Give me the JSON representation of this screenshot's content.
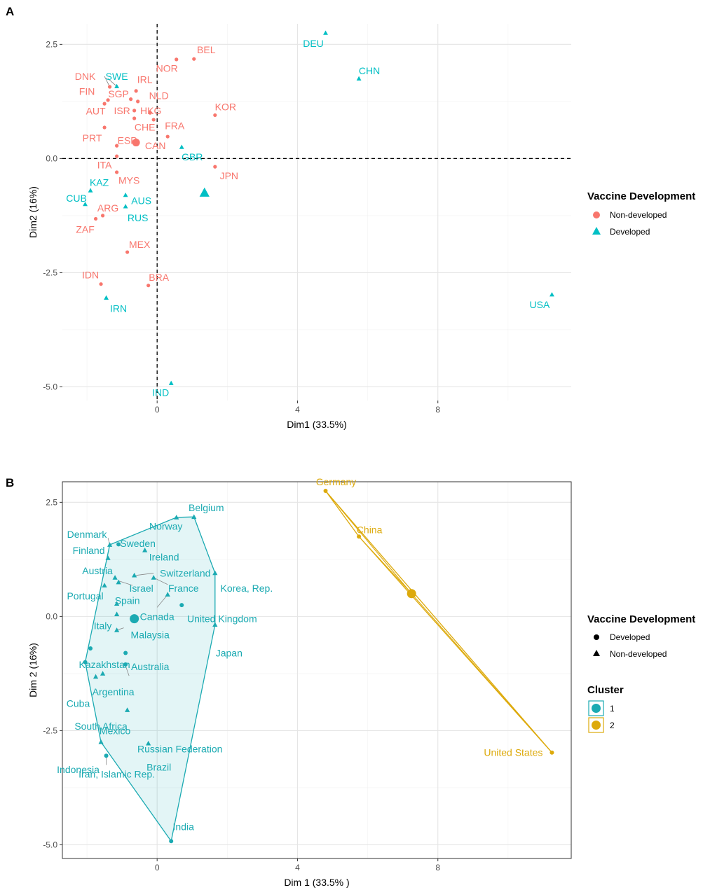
{
  "chart_data": [
    {
      "panel": "A",
      "type": "scatter",
      "xlabel": "Dim1 (33.5%)",
      "ylabel": "Dim2 (16%)",
      "xlim": [
        -2.7,
        11.8
      ],
      "ylim": [
        -5.3,
        2.95
      ],
      "x_ticks": [
        0,
        4,
        8
      ],
      "y_ticks": [
        2.5,
        0.0,
        -2.5,
        -5.0
      ],
      "y_tick_labels": [
        "2.5",
        "0.0",
        "-2.5",
        "-5.0"
      ],
      "reference_lines": {
        "x": 0,
        "y": 0
      },
      "legend": {
        "title": "Vaccine Development",
        "entries": [
          {
            "label": "Non-developed",
            "shape": "circle",
            "color": "#F8766D"
          },
          {
            "label": "Developed",
            "shape": "triangle",
            "color": "#00BFC4"
          }
        ]
      },
      "points": [
        {
          "label": "BEL",
          "x": 1.05,
          "y": 2.18,
          "group": "Non-developed",
          "lx": 1.4,
          "ly": 2.38
        },
        {
          "label": "NOR",
          "x": 0.55,
          "y": 2.17,
          "group": "Non-developed",
          "lx": 0.28,
          "ly": 1.98
        },
        {
          "label": "DNK",
          "x": -1.35,
          "y": 1.57,
          "group": "Non-developed",
          "lx": -2.05,
          "ly": 1.8
        },
        {
          "label": "IRL",
          "x": -0.6,
          "y": 1.48,
          "group": "Non-developed",
          "lx": -0.35,
          "ly": 1.73
        },
        {
          "label": "FIN",
          "x": -1.4,
          "y": 1.28,
          "group": "Non-developed",
          "lx": -2.0,
          "ly": 1.47
        },
        {
          "label": "SGP",
          "x": -0.75,
          "y": 1.3,
          "group": "Non-developed",
          "lx": -1.1,
          "ly": 1.42
        },
        {
          "label": "NLD",
          "x": -0.55,
          "y": 1.25,
          "group": "Non-developed",
          "lx": 0.05,
          "ly": 1.38
        },
        {
          "label": "AUT",
          "x": -1.5,
          "y": 1.2,
          "group": "Non-developed",
          "lx": -1.75,
          "ly": 1.04
        },
        {
          "label": "ISR",
          "x": -0.65,
          "y": 1.05,
          "group": "Non-developed",
          "lx": -1.0,
          "ly": 1.05
        },
        {
          "label": "HKG",
          "x": -0.2,
          "y": 1.0,
          "group": "Non-developed",
          "lx": -0.18,
          "ly": 1.05
        },
        {
          "label": "KOR",
          "x": 1.65,
          "y": 0.95,
          "group": "Non-developed",
          "lx": 1.95,
          "ly": 1.13
        },
        {
          "label": "CHE",
          "x": -0.65,
          "y": 0.88,
          "group": "Non-developed",
          "lx": -0.35,
          "ly": 0.69
        },
        {
          "label": "FRA",
          "x": -0.1,
          "y": 0.85,
          "group": "Non-developed",
          "lx": 0.5,
          "ly": 0.72
        },
        {
          "label": "PRT",
          "x": -1.5,
          "y": 0.68,
          "group": "Non-developed",
          "lx": -1.85,
          "ly": 0.45
        },
        {
          "label": "ESP",
          "x": -1.15,
          "y": 0.28,
          "group": "Non-developed",
          "lx": -0.85,
          "ly": 0.4
        },
        {
          "label": "CAN",
          "x": 0.3,
          "y": 0.48,
          "group": "Non-developed",
          "lx": -0.05,
          "ly": 0.28
        },
        {
          "label": "ITA",
          "x": -1.15,
          "y": 0.05,
          "group": "Non-developed",
          "lx": -1.5,
          "ly": -0.14
        },
        {
          "label": "JPN",
          "x": 1.65,
          "y": -0.18,
          "group": "Non-developed",
          "lx": 2.05,
          "ly": -0.38
        },
        {
          "label": "MYS",
          "x": -1.15,
          "y": -0.3,
          "group": "Non-developed",
          "lx": -0.8,
          "ly": -0.48
        },
        {
          "label": "ARG",
          "x": -1.55,
          "y": -1.25,
          "group": "Non-developed",
          "lx": -1.4,
          "ly": -1.08
        },
        {
          "label": "ZAF",
          "x": -1.75,
          "y": -1.32,
          "group": "Non-developed",
          "lx": -2.05,
          "ly": -1.55
        },
        {
          "label": "MEX",
          "x": -0.85,
          "y": -2.05,
          "group": "Non-developed",
          "lx": -0.5,
          "ly": -1.88
        },
        {
          "label": "IDN",
          "x": -1.6,
          "y": -2.75,
          "group": "Non-developed",
          "lx": -1.9,
          "ly": -2.55
        },
        {
          "label": "BRA",
          "x": -0.25,
          "y": -2.78,
          "group": "Non-developed",
          "lx": 0.05,
          "ly": -2.6
        },
        {
          "label": "DEU",
          "x": 4.8,
          "y": 2.75,
          "group": "Developed",
          "lx": 4.45,
          "ly": 2.52
        },
        {
          "label": "CHN",
          "x": 5.75,
          "y": 1.75,
          "group": "Developed",
          "lx": 6.05,
          "ly": 1.92
        },
        {
          "label": "SWE",
          "x": -1.15,
          "y": 1.58,
          "group": "Developed",
          "lx": -1.15,
          "ly": 1.8
        },
        {
          "label": "GBR",
          "x": 0.7,
          "y": 0.25,
          "group": "Developed",
          "lx": 1.0,
          "ly": 0.04
        },
        {
          "label": "KAZ",
          "x": -1.9,
          "y": -0.7,
          "group": "Developed",
          "lx": -1.65,
          "ly": -0.52
        },
        {
          "label": "CUB",
          "x": -2.05,
          "y": -1.0,
          "group": "Developed",
          "lx": -2.3,
          "ly": -0.87
        },
        {
          "label": "AUS",
          "x": -0.9,
          "y": -0.8,
          "group": "Developed",
          "lx": -0.45,
          "ly": -0.92
        },
        {
          "label": "RUS",
          "x": -0.9,
          "y": -1.05,
          "group": "Developed",
          "lx": -0.55,
          "ly": -1.3
        },
        {
          "label": "IRN",
          "x": -1.45,
          "y": -3.05,
          "group": "Developed",
          "lx": -1.1,
          "ly": -3.28
        },
        {
          "label": "USA",
          "x": 11.25,
          "y": -2.98,
          "group": "Developed",
          "lx": 10.9,
          "ly": -3.2
        },
        {
          "label": "IND",
          "x": 0.4,
          "y": -4.92,
          "group": "Developed",
          "lx": 0.1,
          "ly": -5.12
        }
      ],
      "centroids": [
        {
          "group": "Non-developed",
          "x": -0.6,
          "y": 0.35
        },
        {
          "group": "Developed",
          "x": 1.35,
          "y": -0.75
        }
      ],
      "leaders": [
        {
          "label": "DNK",
          "fx": -1.5,
          "fy": 1.8,
          "tx": -1.35,
          "ty": 1.57
        },
        {
          "label": "SWE",
          "fx": -1.4,
          "fy": 1.75,
          "tx": -1.15,
          "ty": 1.58
        }
      ]
    },
    {
      "panel": "B",
      "type": "scatter",
      "xlabel": "Dim 1 (33.5% )",
      "ylabel": "Dim 2 (16%)",
      "xlim": [
        -2.7,
        11.8
      ],
      "ylim": [
        -5.3,
        2.95
      ],
      "x_ticks": [
        0,
        4,
        8
      ],
      "y_ticks": [
        2.5,
        0.0,
        -2.5,
        -5.0
      ],
      "y_tick_labels": [
        "2.5",
        "0.0",
        "-2.5",
        "-5.0"
      ],
      "legend": {
        "title": "Vaccine Development",
        "entries": [
          {
            "label": "Developed",
            "shape": "circle"
          },
          {
            "label": "Non-developed",
            "shape": "triangle"
          }
        ],
        "cluster_title": "Cluster",
        "clusters": [
          {
            "label": "1",
            "color": "#1BAAB2"
          },
          {
            "label": "2",
            "color": "#DDAA0C"
          }
        ]
      },
      "points": [
        {
          "label": "Belgium",
          "x": 1.05,
          "y": 2.18,
          "shape": "triangle",
          "cluster": "1",
          "lx": 1.4,
          "ly": 2.38
        },
        {
          "label": "Norway",
          "x": 0.55,
          "y": 2.17,
          "shape": "triangle",
          "cluster": "1",
          "lx": 0.25,
          "ly": 1.98
        },
        {
          "label": "Denmark",
          "x": -1.35,
          "y": 1.57,
          "shape": "triangle",
          "cluster": "1",
          "lx": -2.0,
          "ly": 1.8
        },
        {
          "label": "Sweden",
          "x": -1.1,
          "y": 1.58,
          "shape": "circle",
          "cluster": "1",
          "lx": -0.55,
          "ly": 1.6
        },
        {
          "label": "Finland",
          "x": -1.4,
          "y": 1.28,
          "shape": "triangle",
          "cluster": "1",
          "lx": -1.95,
          "ly": 1.45
        },
        {
          "label": "Ireland",
          "x": -0.35,
          "y": 1.45,
          "shape": "triangle",
          "cluster": "1",
          "lx": 0.2,
          "ly": 1.3
        },
        {
          "label": "Austria",
          "x": -1.2,
          "y": 0.85,
          "shape": "triangle",
          "cluster": "1",
          "lx": -1.7,
          "ly": 1.0
        },
        {
          "label": "Switzerland",
          "x": -0.65,
          "y": 0.9,
          "shape": "triangle",
          "cluster": "1",
          "lx": 0.8,
          "ly": 0.95
        },
        {
          "label": "Israel",
          "x": -1.1,
          "y": 0.75,
          "shape": "triangle",
          "cluster": "1",
          "lx": -0.45,
          "ly": 0.62
        },
        {
          "label": "France",
          "x": -0.1,
          "y": 0.85,
          "shape": "triangle",
          "cluster": "1",
          "lx": 0.75,
          "ly": 0.62
        },
        {
          "label": "Korea, Rep.",
          "x": 1.65,
          "y": 0.95,
          "shape": "triangle",
          "cluster": "1",
          "lx": 2.55,
          "ly": 0.62
        },
        {
          "label": "Portugal",
          "x": -1.5,
          "y": 0.68,
          "shape": "triangle",
          "cluster": "1",
          "lx": -2.05,
          "ly": 0.45
        },
        {
          "label": "Spain",
          "x": -1.15,
          "y": 0.28,
          "shape": "triangle",
          "cluster": "1",
          "lx": -0.85,
          "ly": 0.35
        },
        {
          "label": "Canada",
          "x": 0.3,
          "y": 0.48,
          "shape": "triangle",
          "cluster": "1",
          "lx": 0.0,
          "ly": 0.0
        },
        {
          "label": "United Kingdom",
          "x": 0.7,
          "y": 0.25,
          "shape": "circle",
          "cluster": "1",
          "lx": 1.85,
          "ly": -0.05
        },
        {
          "label": "Italy",
          "x": -1.15,
          "y": 0.05,
          "shape": "triangle",
          "cluster": "1",
          "lx": -1.55,
          "ly": -0.2
        },
        {
          "label": "Malaysia",
          "x": -1.15,
          "y": -0.3,
          "shape": "triangle",
          "cluster": "1",
          "lx": -0.2,
          "ly": -0.4
        },
        {
          "label": "Japan",
          "x": 1.65,
          "y": -0.18,
          "shape": "triangle",
          "cluster": "1",
          "lx": 2.05,
          "ly": -0.8
        },
        {
          "label": "Kazakhstan",
          "x": -1.9,
          "y": -0.7,
          "shape": "circle",
          "cluster": "1",
          "lx": -1.5,
          "ly": -1.05
        },
        {
          "label": "Australia",
          "x": -0.9,
          "y": -0.8,
          "shape": "circle",
          "cluster": "1",
          "lx": -0.2,
          "ly": -1.1
        },
        {
          "label": "Cuba",
          "x": -2.05,
          "y": -1.0,
          "shape": "circle",
          "cluster": "1",
          "lx": -2.25,
          "ly": -1.9
        },
        {
          "label": "Argentina",
          "x": -1.55,
          "y": -1.25,
          "shape": "triangle",
          "cluster": "1",
          "lx": -1.25,
          "ly": -1.65
        },
        {
          "label": "South Africa",
          "x": -1.75,
          "y": -1.32,
          "shape": "triangle",
          "cluster": "1",
          "lx": -1.6,
          "ly": -2.4
        },
        {
          "label": "Russian Federation",
          "x": -0.9,
          "y": -1.05,
          "shape": "circle",
          "cluster": "1",
          "lx": 0.65,
          "ly": -2.9
        },
        {
          "label": "Mexico",
          "x": -0.85,
          "y": -2.05,
          "shape": "triangle",
          "cluster": "1",
          "lx": -1.2,
          "ly": -2.5
        },
        {
          "label": "Indonesia",
          "x": -1.6,
          "y": -2.75,
          "shape": "triangle",
          "cluster": "1",
          "lx": -2.25,
          "ly": -3.35
        },
        {
          "label": "Brazil",
          "x": -0.25,
          "y": -2.78,
          "shape": "triangle",
          "cluster": "1",
          "lx": 0.05,
          "ly": -3.3
        },
        {
          "label": "Iran, Islamic Rep.",
          "x": -1.45,
          "y": -3.05,
          "shape": "circle",
          "cluster": "1",
          "lx": -1.15,
          "ly": -3.45
        },
        {
          "label": "India",
          "x": 0.4,
          "y": -4.92,
          "shape": "circle",
          "cluster": "1",
          "lx": 0.75,
          "ly": -4.6
        },
        {
          "label": "Germany",
          "x": 4.8,
          "y": 2.75,
          "shape": "circle",
          "cluster": "2",
          "lx": 5.1,
          "ly": 2.95
        },
        {
          "label": "China",
          "x": 5.75,
          "y": 1.75,
          "shape": "circle",
          "cluster": "2",
          "lx": 6.05,
          "ly": 1.9
        },
        {
          "label": "United States",
          "x": 11.25,
          "y": -2.98,
          "shape": "circle",
          "cluster": "2",
          "lx": 10.15,
          "ly": -2.98
        }
      ],
      "centroids": [
        {
          "cluster": "1",
          "x": -0.65,
          "y": -0.05
        },
        {
          "cluster": "2",
          "x": 7.25,
          "y": 0.5
        }
      ],
      "hulls": [
        {
          "cluster": "1",
          "vertices": [
            [
              0.4,
              -4.92
            ],
            [
              1.65,
              -0.18
            ],
            [
              1.65,
              0.95
            ],
            [
              1.05,
              2.18
            ],
            [
              0.55,
              2.17
            ],
            [
              -1.35,
              1.57
            ],
            [
              -2.05,
              -1.0
            ],
            [
              -1.6,
              -2.75
            ]
          ]
        },
        {
          "cluster": "2",
          "vertices": [
            [
              4.8,
              2.75
            ],
            [
              5.75,
              1.75
            ],
            [
              11.25,
              -2.98
            ]
          ]
        }
      ],
      "leaders": [
        {
          "label": "Denmark",
          "fx": -1.4,
          "fy": 1.72,
          "tx": -1.35,
          "ty": 1.57
        },
        {
          "label": "Sweden",
          "fx": -1.0,
          "fy": 1.55,
          "tx": -1.1,
          "ty": 1.58
        },
        {
          "label": "Israel",
          "fx": -0.7,
          "fy": 0.68,
          "tx": -1.1,
          "ty": 0.78
        },
        {
          "label": "France",
          "fx": 0.3,
          "fy": 0.7,
          "tx": -0.1,
          "ty": 0.85
        },
        {
          "label": "Switzerland",
          "fx": -0.1,
          "fy": 0.95,
          "tx": -0.6,
          "ty": 0.9
        },
        {
          "label": "Canada",
          "fx": 0.0,
          "fy": 0.2,
          "tx": 0.28,
          "ty": 0.46
        },
        {
          "label": "Malaysia",
          "fx": -0.95,
          "fy": -0.25,
          "tx": -1.15,
          "ty": -0.3
        },
        {
          "label": "Russian Federation",
          "fx": -0.8,
          "fy": -1.3,
          "tx": -0.9,
          "ty": -1.08
        },
        {
          "label": "Iran, Islamic Rep.",
          "fx": -1.45,
          "fy": -3.25,
          "tx": -1.45,
          "ty": -3.07
        }
      ]
    }
  ]
}
